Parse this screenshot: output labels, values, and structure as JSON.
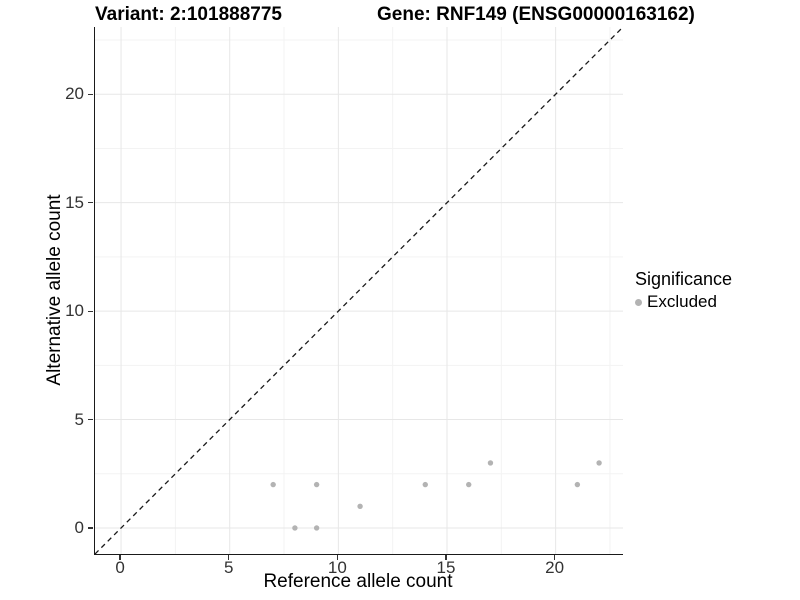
{
  "titles": {
    "variant": "Variant: 2:101888775",
    "gene": "Gene: RNF149 (ENSG00000163162)"
  },
  "chart_data": {
    "type": "scatter",
    "xlabel": "Reference allele count",
    "ylabel": "Alternative allele count",
    "xlim": [
      -1.2,
      23.1
    ],
    "ylim": [
      -1.2,
      23.1
    ],
    "x_ticks": [
      0,
      5,
      10,
      15,
      20
    ],
    "y_ticks": [
      0,
      5,
      10,
      15,
      20
    ],
    "minor_gridlines": [
      2.5,
      7.5,
      12.5,
      17.5,
      22.5
    ],
    "grid": true,
    "identity_line": {
      "slope": 1,
      "intercept": 0,
      "style": "dashed",
      "color": "#1a1a1a"
    },
    "series": [
      {
        "name": "Excluded",
        "color": "#b3b3b3",
        "points": [
          [
            7,
            2
          ],
          [
            8,
            0
          ],
          [
            9,
            0
          ],
          [
            9,
            2
          ],
          [
            11,
            1
          ],
          [
            14,
            2
          ],
          [
            16,
            2
          ],
          [
            17,
            3
          ],
          [
            21,
            2
          ],
          [
            22,
            3
          ]
        ]
      }
    ],
    "legend": {
      "title": "Significance",
      "position": "right",
      "entries": [
        {
          "label": "Excluded",
          "color": "#b3b3b3"
        }
      ]
    },
    "colors": {
      "grid_major": "#e7e7e7",
      "grid_minor": "#f3f3f3",
      "axis_line": "#1a1a1a",
      "point": "#b3b3b3"
    }
  }
}
